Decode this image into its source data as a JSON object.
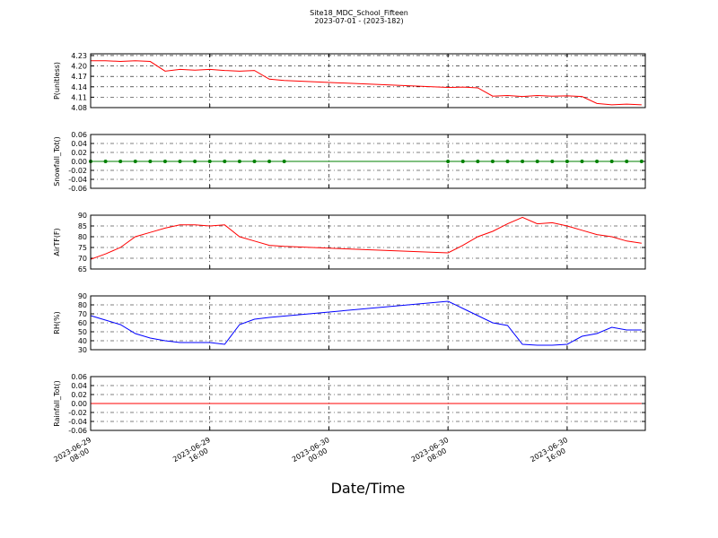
{
  "title": "Site18_MDC_School_Fifteen",
  "subtitle": "2023-07-01 - (2023-182)",
  "chart_data": [
    {
      "type": "line",
      "ylabel": "P(unitless)",
      "grid": true,
      "x": [
        "2023-06-29 08:00",
        "2023-06-29 09:00",
        "2023-06-29 10:00",
        "2023-06-29 11:00",
        "2023-06-29 12:00",
        "2023-06-29 13:00",
        "2023-06-29 14:00",
        "2023-06-29 15:00",
        "2023-06-29 16:00",
        "2023-06-29 17:00",
        "2023-06-29 18:00",
        "2023-06-29 19:00",
        "2023-06-29 20:00",
        "2023-06-29 21:00",
        "2023-06-30 08:00",
        "2023-06-30 09:00",
        "2023-06-30 10:00",
        "2023-06-30 11:00",
        "2023-06-30 12:00",
        "2023-06-30 13:00",
        "2023-06-30 14:00",
        "2023-06-30 15:00",
        "2023-06-30 16:00",
        "2023-06-30 17:00",
        "2023-06-30 18:00",
        "2023-06-30 19:00",
        "2023-06-30 20:00",
        "2023-06-30 21:00"
      ],
      "series": [
        {
          "name": "P(unitless)",
          "color": "#ff0000",
          "values": [
            4.215,
            4.215,
            4.213,
            4.215,
            4.213,
            4.185,
            4.19,
            4.188,
            4.19,
            4.187,
            4.185,
            4.187,
            4.162,
            4.158,
            4.138,
            4.139,
            4.137,
            4.113,
            4.115,
            4.112,
            4.115,
            4.113,
            4.114,
            4.112,
            4.092,
            4.088,
            4.09,
            4.088
          ]
        }
      ],
      "xlim": [
        "2023-06-29 08:00",
        "2023-06-30 21:15"
      ],
      "xticks": [
        "2023-06-29 08:00",
        "2023-06-29 16:00",
        "2023-06-30 00:00",
        "2023-06-30 08:00",
        "2023-06-30 16:00"
      ],
      "ylim": [
        4.08,
        4.235
      ],
      "yticks": [
        4.08,
        4.11,
        4.14,
        4.17,
        {
          "value": 4.2,
          "label": "4.20"
        },
        4.23
      ]
    },
    {
      "type": "line",
      "ylabel": "Snowfall_Tot()",
      "grid": true,
      "markers": true,
      "x": [
        "2023-06-29 08:00",
        "2023-06-29 09:00",
        "2023-06-29 10:00",
        "2023-06-29 11:00",
        "2023-06-29 12:00",
        "2023-06-29 13:00",
        "2023-06-29 14:00",
        "2023-06-29 15:00",
        "2023-06-29 16:00",
        "2023-06-29 17:00",
        "2023-06-29 18:00",
        "2023-06-29 19:00",
        "2023-06-29 20:00",
        "2023-06-29 21:00",
        "2023-06-30 08:00",
        "2023-06-30 09:00",
        "2023-06-30 10:00",
        "2023-06-30 11:00",
        "2023-06-30 12:00",
        "2023-06-30 13:00",
        "2023-06-30 14:00",
        "2023-06-30 15:00",
        "2023-06-30 16:00",
        "2023-06-30 17:00",
        "2023-06-30 18:00",
        "2023-06-30 19:00",
        "2023-06-30 20:00",
        "2023-06-30 21:00"
      ],
      "series": [
        {
          "name": "Snowfall_Tot()",
          "color": "#008000",
          "values": [
            0,
            0,
            0,
            0,
            0,
            0,
            0,
            0,
            0,
            0,
            0,
            0,
            0,
            0,
            0,
            0,
            0,
            0,
            0,
            0,
            0,
            0,
            0,
            0,
            0,
            0,
            0,
            0
          ]
        }
      ],
      "xlim": [
        "2023-06-29 08:00",
        "2023-06-30 21:15"
      ],
      "xticks": [
        "2023-06-29 08:00",
        "2023-06-29 16:00",
        "2023-06-30 00:00",
        "2023-06-30 08:00",
        "2023-06-30 16:00"
      ],
      "ylim": [
        -0.06,
        0.06
      ],
      "yticks": [
        -0.06,
        -0.04,
        -0.02,
        {
          "value": 0,
          "label": "0.00"
        },
        0.02,
        0.04,
        0.06
      ]
    },
    {
      "type": "line",
      "ylabel": "AirTF(F)",
      "grid": true,
      "x": [
        "2023-06-29 08:00",
        "2023-06-29 09:00",
        "2023-06-29 10:00",
        "2023-06-29 11:00",
        "2023-06-29 12:00",
        "2023-06-29 13:00",
        "2023-06-29 14:00",
        "2023-06-29 15:00",
        "2023-06-29 16:00",
        "2023-06-29 17:00",
        "2023-06-29 18:00",
        "2023-06-29 19:00",
        "2023-06-29 20:00",
        "2023-06-29 21:00",
        "2023-06-30 08:00",
        "2023-06-30 09:00",
        "2023-06-30 10:00",
        "2023-06-30 11:00",
        "2023-06-30 12:00",
        "2023-06-30 13:00",
        "2023-06-30 14:00",
        "2023-06-30 15:00",
        "2023-06-30 16:00",
        "2023-06-30 17:00",
        "2023-06-30 18:00",
        "2023-06-30 19:00",
        "2023-06-30 20:00",
        "2023-06-30 21:00"
      ],
      "series": [
        {
          "name": "AirTF(F)",
          "color": "#ff0000",
          "values": [
            69.5,
            72,
            75,
            80,
            82,
            84,
            85.5,
            85.5,
            85,
            85.5,
            80,
            78,
            76,
            75.5,
            72.5,
            76,
            80,
            82.5,
            86,
            89,
            86,
            86.5,
            85,
            83,
            81,
            80,
            78,
            77
          ]
        }
      ],
      "xlim": [
        "2023-06-29 08:00",
        "2023-06-30 21:15"
      ],
      "xticks": [
        "2023-06-29 08:00",
        "2023-06-29 16:00",
        "2023-06-30 00:00",
        "2023-06-30 08:00",
        "2023-06-30 16:00"
      ],
      "ylim": [
        65,
        90
      ],
      "yticks": [
        65,
        70,
        75,
        80,
        85,
        90
      ]
    },
    {
      "type": "line",
      "ylabel": "RH(%)",
      "grid": true,
      "x": [
        "2023-06-29 08:00",
        "2023-06-29 09:00",
        "2023-06-29 10:00",
        "2023-06-29 11:00",
        "2023-06-29 12:00",
        "2023-06-29 13:00",
        "2023-06-29 14:00",
        "2023-06-29 15:00",
        "2023-06-29 16:00",
        "2023-06-29 17:00",
        "2023-06-29 18:00",
        "2023-06-29 19:00",
        "2023-06-29 20:00",
        "2023-06-29 21:00",
        "2023-06-30 08:00",
        "2023-06-30 09:00",
        "2023-06-30 10:00",
        "2023-06-30 11:00",
        "2023-06-30 12:00",
        "2023-06-30 13:00",
        "2023-06-30 14:00",
        "2023-06-30 15:00",
        "2023-06-30 16:00",
        "2023-06-30 17:00",
        "2023-06-30 18:00",
        "2023-06-30 19:00",
        "2023-06-30 20:00",
        "2023-06-30 21:00"
      ],
      "series": [
        {
          "name": "RH(%)",
          "color": "#0000ff",
          "values": [
            68,
            63,
            58,
            48,
            43,
            40,
            38,
            38,
            38,
            36,
            58,
            64,
            66,
            67.5,
            84,
            76,
            68,
            60,
            57,
            36,
            35,
            35,
            36,
            45,
            48,
            55,
            52,
            52
          ]
        }
      ],
      "xlim": [
        "2023-06-29 08:00",
        "2023-06-30 21:15"
      ],
      "xticks": [
        "2023-06-29 08:00",
        "2023-06-29 16:00",
        "2023-06-30 00:00",
        "2023-06-30 08:00",
        "2023-06-30 16:00"
      ],
      "ylim": [
        30,
        90
      ],
      "yticks": [
        30,
        40,
        50,
        60,
        70,
        80,
        90
      ]
    },
    {
      "type": "line",
      "ylabel": "Rainfall_Tot()",
      "xlabel": "Date/Time",
      "grid": true,
      "x": [
        "2023-06-29 08:00",
        "2023-06-29 09:00",
        "2023-06-29 10:00",
        "2023-06-29 11:00",
        "2023-06-29 12:00",
        "2023-06-29 13:00",
        "2023-06-29 14:00",
        "2023-06-29 15:00",
        "2023-06-29 16:00",
        "2023-06-29 17:00",
        "2023-06-29 18:00",
        "2023-06-29 19:00",
        "2023-06-29 20:00",
        "2023-06-29 21:00",
        "2023-06-30 08:00",
        "2023-06-30 09:00",
        "2023-06-30 10:00",
        "2023-06-30 11:00",
        "2023-06-30 12:00",
        "2023-06-30 13:00",
        "2023-06-30 14:00",
        "2023-06-30 15:00",
        "2023-06-30 16:00",
        "2023-06-30 17:00",
        "2023-06-30 18:00",
        "2023-06-30 19:00",
        "2023-06-30 20:00",
        "2023-06-30 21:00"
      ],
      "series": [
        {
          "name": "Rainfall_Tot()",
          "color": "#ff0000",
          "values": [
            0,
            0,
            0,
            0,
            0,
            0,
            0,
            0,
            0,
            0,
            0,
            0,
            0,
            0,
            0,
            0,
            0,
            0,
            0,
            0,
            0,
            0,
            0,
            0,
            0,
            0,
            0,
            0
          ]
        }
      ],
      "xlim": [
        "2023-06-29 08:00",
        "2023-06-30 21:15"
      ],
      "xticks": [
        "2023-06-29 08:00",
        "2023-06-29 16:00",
        "2023-06-30 00:00",
        "2023-06-30 08:00",
        "2023-06-30 16:00"
      ],
      "ylim": [
        -0.06,
        0.06
      ],
      "yticks": [
        -0.06,
        -0.04,
        -0.02,
        {
          "value": 0,
          "label": "0.00"
        },
        0.02,
        0.04,
        0.06
      ]
    }
  ]
}
